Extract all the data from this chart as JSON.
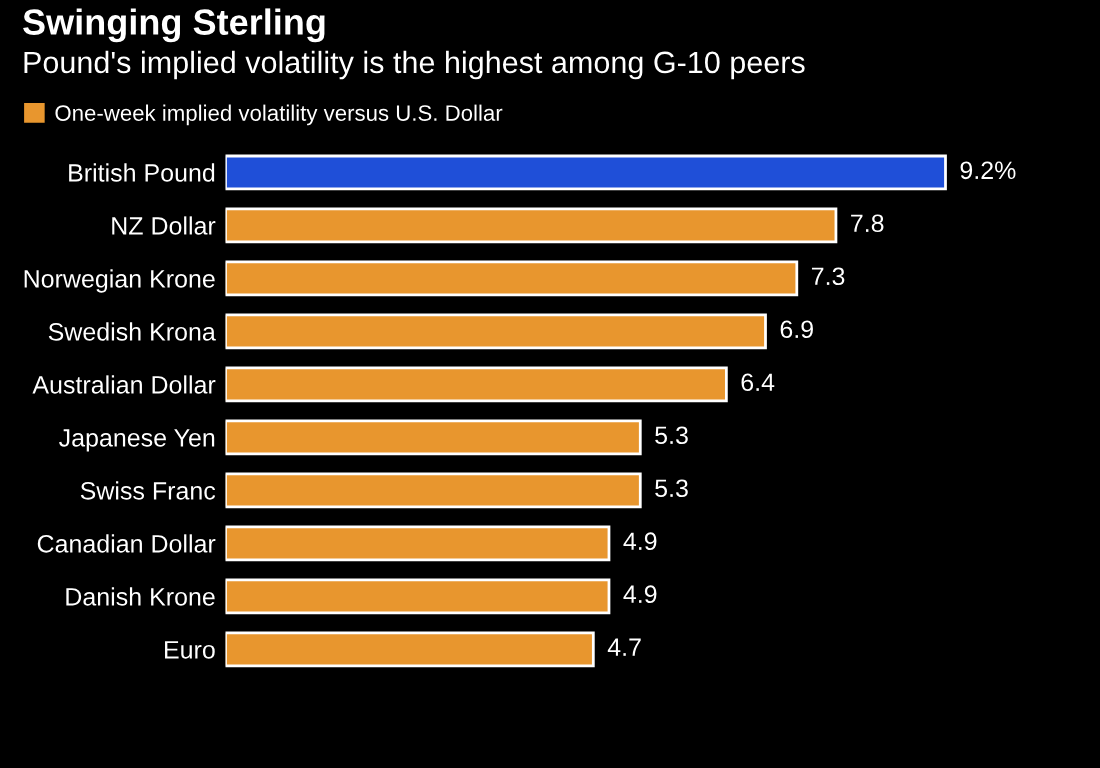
{
  "chart_data": {
    "type": "bar",
    "orientation": "horizontal",
    "title": "Swinging Sterling",
    "subtitle": "Pound's implied volatility is the highest among G-10 peers",
    "categories": [
      "British Pound",
      "NZ Dollar",
      "Norwegian Krone",
      "Swedish Krona",
      "Australian Dollar",
      "Japanese Yen",
      "Swiss Franc",
      "Canadian Dollar",
      "Danish Krone",
      "Euro"
    ],
    "series": [
      {
        "name": "One-week implied volatility versus U.S. Dollar",
        "color": "#e8962e",
        "colors": [
          "#1f4fd8",
          "#e8962e",
          "#e8962e",
          "#e8962e",
          "#e8962e",
          "#e8962e",
          "#e8962e",
          "#e8962e",
          "#e8962e",
          "#e8962e"
        ],
        "values": [
          9.2,
          7.8,
          7.3,
          6.9,
          6.4,
          5.3,
          5.3,
          4.9,
          4.9,
          4.7
        ],
        "value_labels": [
          "9.2%",
          "7.8",
          "7.3",
          "6.9",
          "6.4",
          "5.3",
          "5.3",
          "4.9",
          "4.9",
          "4.7"
        ]
      }
    ],
    "legend": "top left"
  }
}
